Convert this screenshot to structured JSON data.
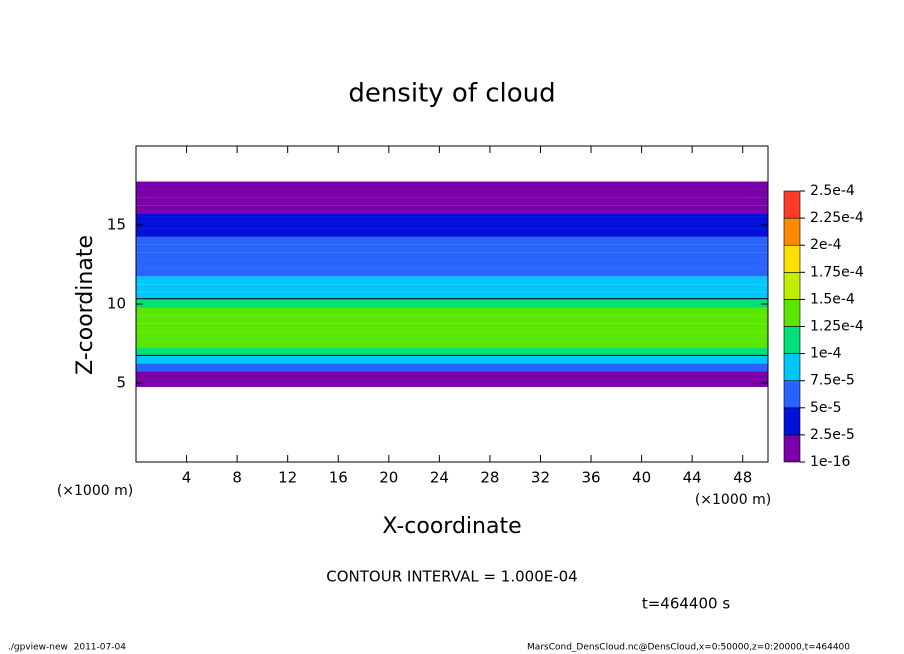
{
  "chart_data": {
    "type": "contour-profile",
    "title": "density of cloud",
    "x_label": "X-coordinate",
    "y_label": "Z-coordinate",
    "x_unit_left": "(×1000 m)",
    "x_unit_right": "(×1000 m)",
    "xlim": [
      0,
      50
    ],
    "xticks": [
      4,
      8,
      12,
      16,
      20,
      24,
      28,
      32,
      36,
      40,
      44,
      48
    ],
    "ylim": [
      0,
      20
    ],
    "yticks": [
      5,
      10,
      15
    ],
    "z": [
      5,
      5.5,
      6,
      6.5,
      7,
      7.5,
      8,
      8.5,
      9,
      9.5,
      10,
      10.5,
      11,
      11.5,
      12,
      12.5,
      13,
      13.5,
      14,
      14.5,
      15,
      15.5,
      16,
      16.5,
      17,
      17.5
    ],
    "values": [
      1e-05,
      2e-05,
      6e-05,
      9e-05,
      0.00011,
      0.00013,
      0.000145,
      0.000145,
      0.000135,
      0.000125,
      0.00011,
      9.5e-05,
      8.5e-05,
      7.5e-05,
      6.5e-05,
      6e-05,
      5.5e-05,
      5.2e-05,
      5e-05,
      4.8e-05,
      4.5e-05,
      4e-05,
      2e-05,
      1.5e-05,
      1e-05,
      5e-06
    ],
    "levels": [
      {
        "value": 1e-16,
        "label": "1e-16"
      },
      {
        "value": 2.5e-05,
        "label": "2.5e-5"
      },
      {
        "value": 5e-05,
        "label": "5e-5"
      },
      {
        "value": 7.5e-05,
        "label": "7.5e-5"
      },
      {
        "value": 0.0001,
        "label": "1e-4"
      },
      {
        "value": 0.000125,
        "label": "1.25e-4"
      },
      {
        "value": 0.00015,
        "label": "1.5e-4"
      },
      {
        "value": 0.000175,
        "label": "1.75e-4"
      },
      {
        "value": 0.0002,
        "label": "2e-4"
      },
      {
        "value": 0.000225,
        "label": "2.25e-4"
      },
      {
        "value": 0.00025,
        "label": "2.5e-4"
      }
    ],
    "colors": [
      "#7a00aa",
      "#0010d8",
      "#2a64ff",
      "#00c8ff",
      "#00e07a",
      "#5ae600",
      "#c0f000",
      "#ffe000",
      "#ff8a00",
      "#ff3c28"
    ],
    "contour_levels": [
      0.0001
    ],
    "contour_note": "CONTOUR INTERVAL = 1.000E-04",
    "time_note": "t=464400 s",
    "footer_left": "./gpview-new  2011-07-04",
    "footer_right": "MarsCond_DensCloud.nc@DensCloud,x=0:50000,z=0:20000,t=464400"
  }
}
